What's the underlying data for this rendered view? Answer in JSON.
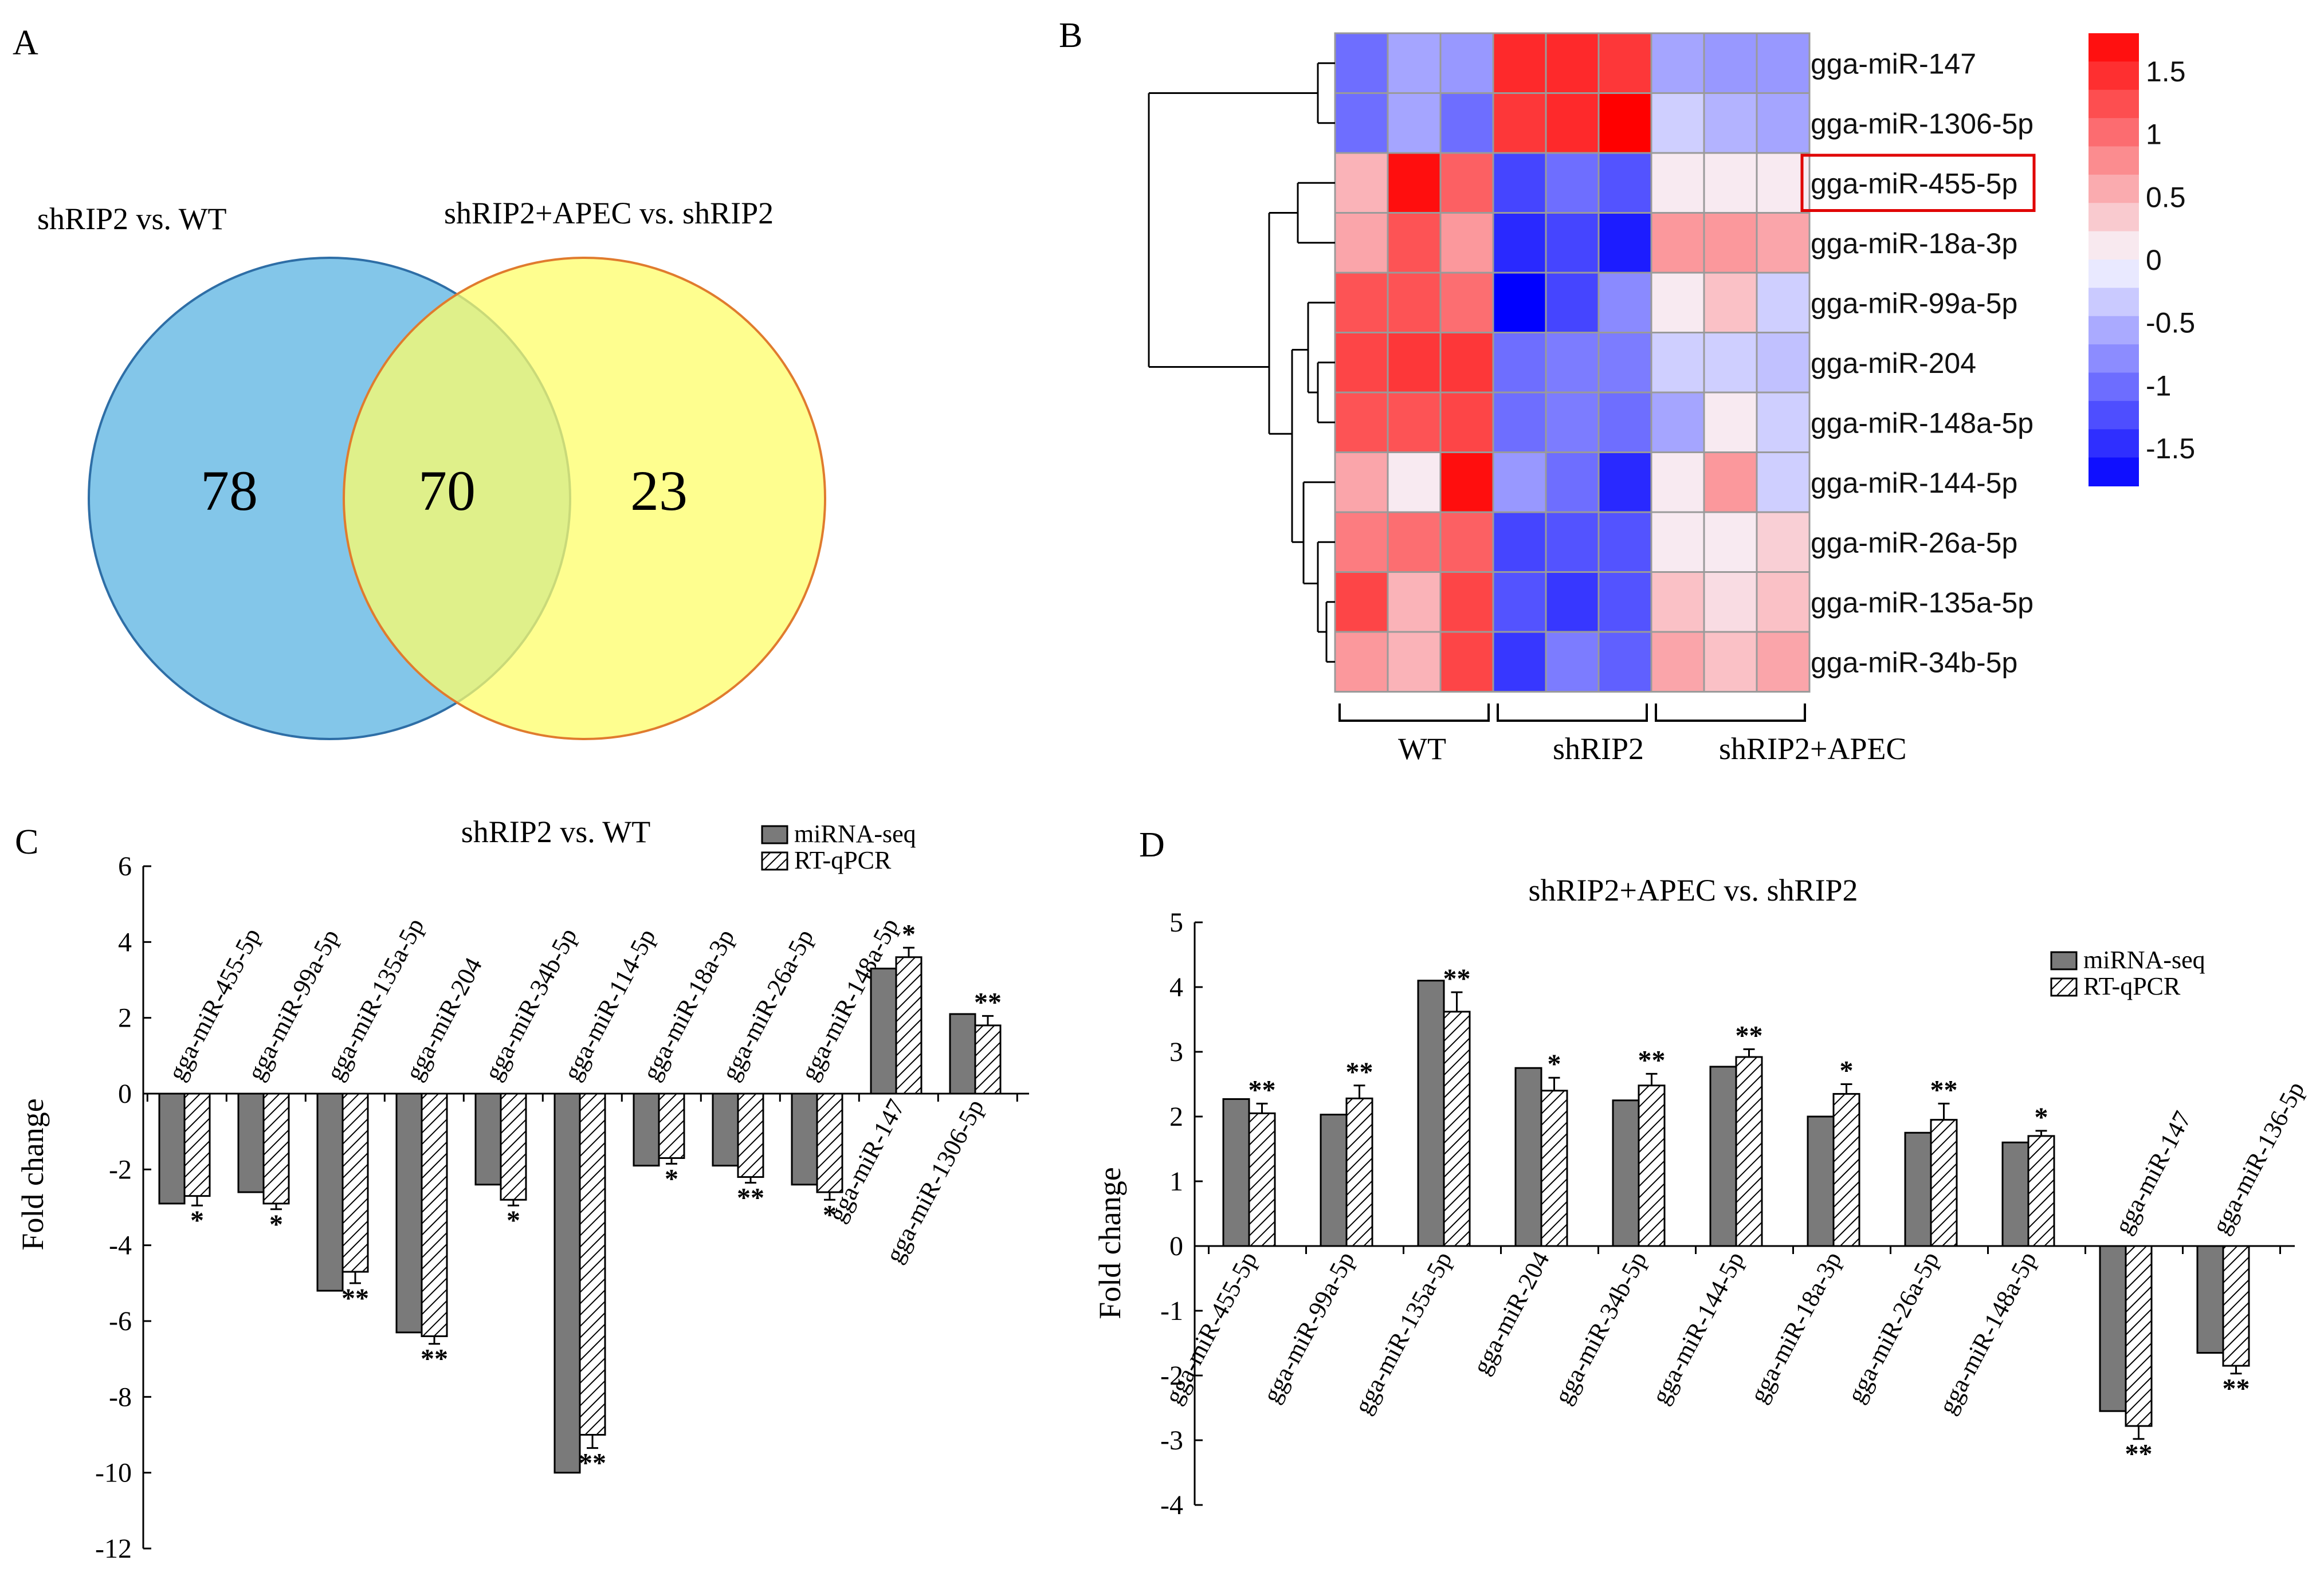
{
  "panels": {
    "a": "A",
    "b": "B",
    "c": "C",
    "d": "D"
  },
  "chart_data": [
    {
      "panel": "A",
      "type": "venn",
      "sets": [
        {
          "name": "shRIP2 vs. WT",
          "only": 78,
          "color": "#5ab3e2"
        },
        {
          "name": "shRIP2+APEC vs. shRIP2",
          "only": 23,
          "color": "#fdfd6a"
        }
      ],
      "intersection": 70,
      "intersection_color": "#b0d97e"
    },
    {
      "panel": "B",
      "type": "heatmap",
      "rows": [
        "gga-miR-147",
        "gga-miR-1306-5p",
        "gga-miR-455-5p",
        "gga-miR-18a-3p",
        "gga-miR-99a-5p",
        "gga-miR-204",
        "gga-miR-148a-5p",
        "gga-miR-144-5p",
        "gga-miR-26a-5p",
        "gga-miR-135a-5p",
        "gga-miR-34b-5p"
      ],
      "highlighted_row": "gga-miR-455-5p",
      "groups": [
        "WT",
        "shRIP2",
        "shRIP2+APEC"
      ],
      "values": [
        [
          -1.0,
          -0.6,
          -0.7,
          1.5,
          1.5,
          1.4,
          -0.6,
          -0.7,
          -0.7
        ],
        [
          -1.0,
          -0.6,
          -1.0,
          1.4,
          1.5,
          1.8,
          -0.3,
          -0.5,
          -0.6
        ],
        [
          0.5,
          1.7,
          1.1,
          -1.3,
          -1.0,
          -1.2,
          0.1,
          0.1,
          0.1
        ],
        [
          0.6,
          1.2,
          0.7,
          -1.5,
          -1.3,
          -1.6,
          0.7,
          0.7,
          0.6
        ],
        [
          1.2,
          1.2,
          1.0,
          -1.8,
          -1.3,
          -0.8,
          0.1,
          0.4,
          -0.3
        ],
        [
          1.3,
          1.4,
          1.4,
          -1.0,
          -0.9,
          -0.9,
          -0.3,
          -0.3,
          -0.4
        ],
        [
          1.2,
          1.2,
          1.3,
          -1.0,
          -0.9,
          -1.0,
          -0.6,
          0.1,
          -0.3
        ],
        [
          0.6,
          0.1,
          1.7,
          -0.7,
          -1.0,
          -1.5,
          0.1,
          0.7,
          -0.3
        ],
        [
          0.9,
          1.0,
          1.1,
          -1.3,
          -1.2,
          -1.2,
          0.1,
          0.1,
          0.3
        ],
        [
          1.3,
          0.5,
          1.3,
          -1.2,
          -1.4,
          -1.2,
          0.4,
          0.2,
          0.4
        ],
        [
          0.7,
          0.5,
          1.3,
          -1.4,
          -0.9,
          -1.1,
          0.6,
          0.4,
          0.6
        ]
      ],
      "colorbar_ticks": [
        "1.5",
        "1",
        "0.5",
        "0",
        "-0.5",
        "-1",
        "-1.5"
      ],
      "colorbar_range": [
        -1.8,
        1.8
      ],
      "colors": {
        "low": "#0000ff",
        "mid": "#f8f8ff",
        "high": "#ff0000"
      }
    },
    {
      "panel": "C",
      "type": "bar",
      "title": "shRIP2 vs. WT",
      "ylabel": "Fold change",
      "ylim": [
        -12,
        6
      ],
      "yticks": [
        "6",
        "4",
        "2",
        "0",
        "-2",
        "-4",
        "-6",
        "-8",
        "-10",
        "-12"
      ],
      "categories": [
        "gga-miR-455-5p",
        "gga-miR-99a-5p",
        "gga-miR-135a-5p",
        "gga-miR-204",
        "gga-miR-34b-5p",
        "gga-miR-114-5p",
        "gga-miR-18a-3p",
        "gga-miR-26a-5p",
        "gga-miR-148a-5p",
        "gga-miR-147",
        "gga-miR-1306-5p"
      ],
      "series": [
        {
          "name": "miRNA-seq",
          "values": [
            -2.9,
            -2.6,
            -5.2,
            -6.3,
            -2.4,
            -10.0,
            -1.9,
            -1.9,
            -2.4,
            3.3,
            2.1
          ]
        },
        {
          "name": "RT-qPCR",
          "values": [
            -2.7,
            -2.9,
            -4.7,
            -6.4,
            -2.8,
            -9.0,
            -1.7,
            -2.2,
            -2.6,
            3.6,
            1.8
          ]
        }
      ],
      "errors": [
        0.25,
        0.15,
        0.3,
        0.2,
        0.15,
        0.35,
        0.15,
        0.15,
        0.2,
        0.25,
        0.25
      ],
      "significance": [
        "*",
        "*",
        "**",
        "**",
        "*",
        "**",
        "*",
        "**",
        "*",
        "*",
        "**"
      ]
    },
    {
      "panel": "D",
      "type": "bar",
      "title": "shRIP2+APEC vs. shRIP2",
      "ylabel": "Fold change",
      "ylim": [
        -4,
        5
      ],
      "yticks": [
        "5",
        "4",
        "3",
        "2",
        "1",
        "0",
        "-1",
        "-2",
        "-3",
        "-4"
      ],
      "categories": [
        "gga-miR-455-5p",
        "gga-miR-99a-5p",
        "gga-miR-135a-5p",
        "gga-miR-204",
        "gga-miR-34b-5p",
        "gga-miR-144-5p",
        "gga-miR-18a-3p",
        "gga-miR-26a-5p",
        "gga-miR-148a-5p",
        "gga-miR-147",
        "gga-miR-136-5p"
      ],
      "series": [
        {
          "name": "miRNA-seq",
          "values": [
            2.27,
            2.03,
            4.1,
            2.75,
            2.25,
            2.77,
            2.0,
            1.75,
            1.6,
            -2.55,
            -1.65
          ]
        },
        {
          "name": "RT-qPCR",
          "values": [
            2.05,
            2.28,
            3.62,
            2.4,
            2.48,
            2.92,
            2.35,
            1.95,
            1.7,
            -2.78,
            -1.85
          ]
        }
      ],
      "errors": [
        0.15,
        0.2,
        0.3,
        0.2,
        0.18,
        0.12,
        0.15,
        0.25,
        0.08,
        0.2,
        0.12
      ],
      "significance": [
        "**",
        "**",
        "**",
        "*",
        "**",
        "**",
        "*",
        "**",
        "*",
        "**",
        "**"
      ]
    }
  ]
}
